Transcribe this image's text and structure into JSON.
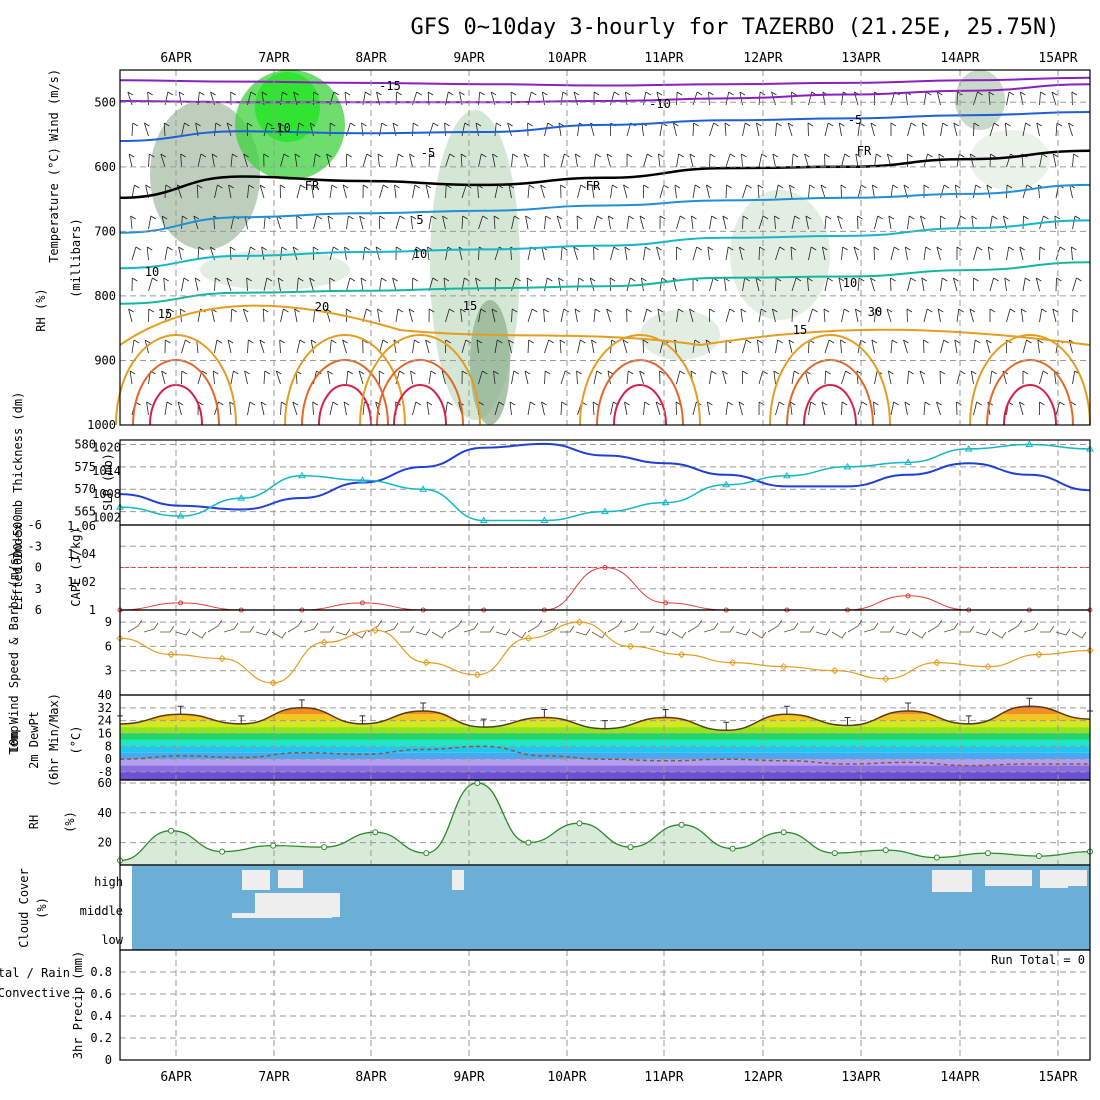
{
  "title": "GFS 0~10day 3-hourly for TAZERBO (21.25E, 25.75N)",
  "colors": {
    "rh_green": "#2bd12b",
    "temp_purple": "#8a1fbf",
    "temp_blue": "#1f5fd6",
    "temp_cyan": "#13b7c7",
    "temp_orange": "#e59d1f",
    "temp_red": "#d6204a",
    "slp": "#1f3fd6",
    "thickness": "#13b7c7",
    "lifted_index": "#e03a3a",
    "wind_speed": "#e59d1f",
    "rh2m": "#2a8a2a",
    "cloud": "#6baed6"
  },
  "chart_data": [
    {
      "type": "heatmap",
      "panel": "upper-air",
      "xlabel": "",
      "ylabel": "(millibars)",
      "side_labels": [
        "Wind (m/s)",
        "Temperature (°C)",
        "RH (%)"
      ],
      "x_days": [
        "6APR",
        "7APR",
        "8APR",
        "9APR",
        "10APR",
        "11APR",
        "12APR",
        "13APR",
        "14APR",
        "15APR"
      ],
      "yticks": [
        "500",
        "600",
        "700",
        "800",
        "900",
        "1000"
      ],
      "ylim": [
        1000,
        450
      ],
      "contour_labels": [
        "-15",
        "-10",
        "-10",
        "-5",
        "-5",
        "FR",
        "FR",
        "FR",
        "5",
        "10",
        "10",
        "15",
        "15",
        "15",
        "20",
        "30",
        "10"
      ],
      "isotherms": [
        {
          "name": "-15",
          "color": "#8a1fbf",
          "p": [
            466,
            468,
            470,
            472,
            474,
            472,
            470,
            466,
            462
          ]
        },
        {
          "name": "-10",
          "color": "#8a1fbf",
          "p": [
            498,
            500,
            500,
            500,
            498,
            494,
            488,
            482,
            472
          ]
        },
        {
          "name": "-5",
          "color": "#1f5fd6",
          "p": [
            560,
            545,
            548,
            546,
            535,
            528,
            525,
            520,
            515
          ]
        },
        {
          "name": "FR",
          "color": "#000000",
          "p": [
            648,
            615,
            622,
            628,
            617,
            602,
            600,
            588,
            575
          ]
        },
        {
          "name": "5",
          "color": "#1f8fd6",
          "p": [
            702,
            678,
            672,
            668,
            660,
            652,
            648,
            642,
            628
          ]
        },
        {
          "name": "10",
          "color": "#13b7c7",
          "p": [
            757,
            738,
            732,
            728,
            722,
            710,
            707,
            695,
            683
          ]
        },
        {
          "name": "15",
          "color": "#13b7a0",
          "p": [
            812,
            795,
            792,
            788,
            785,
            772,
            770,
            760,
            748
          ]
        }
      ]
    },
    {
      "type": "line",
      "panel": "slp-thickness",
      "ylabel_left": "1000-500mb Thickness (dm)",
      "ylabel_right": "SLP (mb)",
      "yticks_left": [
        "565",
        "570",
        "575",
        "580"
      ],
      "yticks_right": [
        "1002",
        "1008",
        "1014",
        "1020"
      ],
      "series": [
        {
          "name": "SLP",
          "values": [
            1008,
            1005,
            1004,
            1007,
            1011,
            1015,
            1020,
            1021,
            1018,
            1016,
            1013,
            1010,
            1010,
            1013,
            1016,
            1013,
            1009
          ]
        },
        {
          "name": "Thickness",
          "values": [
            566,
            564,
            568,
            573,
            572,
            570,
            563,
            563,
            565,
            567,
            571,
            573,
            575,
            576,
            579,
            580,
            579
          ]
        }
      ],
      "ylim_left": [
        562,
        581
      ],
      "ylim_right": [
        1000,
        1022
      ]
    },
    {
      "type": "line",
      "panel": "lifted-index-cape",
      "ylabel_left": "Lifted Index",
      "ylabel_right": "CAPE (J/kg)",
      "yticks_left": [
        "-6",
        "-3",
        "0",
        "3",
        "6"
      ],
      "yticks_right": [
        "1",
        "1.02",
        "1.04",
        "1.06"
      ],
      "series": [
        {
          "name": "Lifted Index",
          "values": [
            6,
            5,
            6,
            6,
            5,
            6,
            6,
            6,
            0,
            5,
            6,
            6,
            6,
            4,
            6,
            6,
            6
          ]
        }
      ],
      "ylim_left": [
        6,
        -6
      ]
    },
    {
      "type": "line",
      "panel": "wind10m",
      "ylabel": "10m Wind Speed & Barbs (m/s)",
      "yticks": [
        "3",
        "6",
        "9"
      ],
      "series": [
        {
          "name": "Speed",
          "values": [
            7,
            5,
            4.5,
            1.5,
            6.5,
            8,
            4,
            2.5,
            7,
            9,
            6,
            5,
            4,
            3.5,
            3,
            2,
            4,
            3.5,
            5,
            5.5
          ]
        }
      ],
      "ylim": [
        0,
        10.5
      ]
    },
    {
      "type": "area",
      "panel": "temperature",
      "ylabel": "2m Temp 2m DewPt (6hr Min/Max) (°C)",
      "yticks": [
        "-8",
        "0",
        "8",
        "16",
        "24",
        "32",
        "40"
      ],
      "series": [
        {
          "name": "Temp",
          "values": [
            22,
            28,
            22,
            32,
            22,
            30,
            20,
            26,
            19,
            26,
            18,
            28,
            21,
            30,
            22,
            33,
            25
          ]
        },
        {
          "name": "DewPt",
          "values": [
            0,
            2,
            1,
            4,
            3,
            6,
            8,
            2,
            0,
            -1,
            0,
            -1,
            -3,
            -2,
            -4,
            -3,
            -3
          ]
        }
      ],
      "ylim": [
        -13,
        40
      ]
    },
    {
      "type": "area",
      "panel": "rh2m",
      "ylabel": "2m RH (%)",
      "yticks": [
        "20",
        "40",
        "60"
      ],
      "series": [
        {
          "name": "RH",
          "values": [
            8,
            28,
            14,
            18,
            17,
            27,
            13,
            60,
            20,
            33,
            17,
            32,
            16,
            27,
            13,
            15,
            10,
            13,
            11,
            14
          ]
        }
      ],
      "ylim": [
        5,
        62
      ]
    },
    {
      "type": "heatmap",
      "panel": "cloud-cover",
      "ylabel": "Cloud Cover (%)",
      "levels": [
        "high",
        "middle",
        "low"
      ]
    },
    {
      "type": "bar",
      "panel": "precip",
      "ylabel": "3hr Precip (mm)",
      "legend": [
        "Total / Rain",
        "Convective"
      ],
      "yticks": [
        "0",
        "0.2",
        "0.4",
        "0.6",
        "0.8"
      ],
      "ylim": [
        0,
        1
      ],
      "run_total": "Run Total = 0",
      "values": []
    }
  ]
}
